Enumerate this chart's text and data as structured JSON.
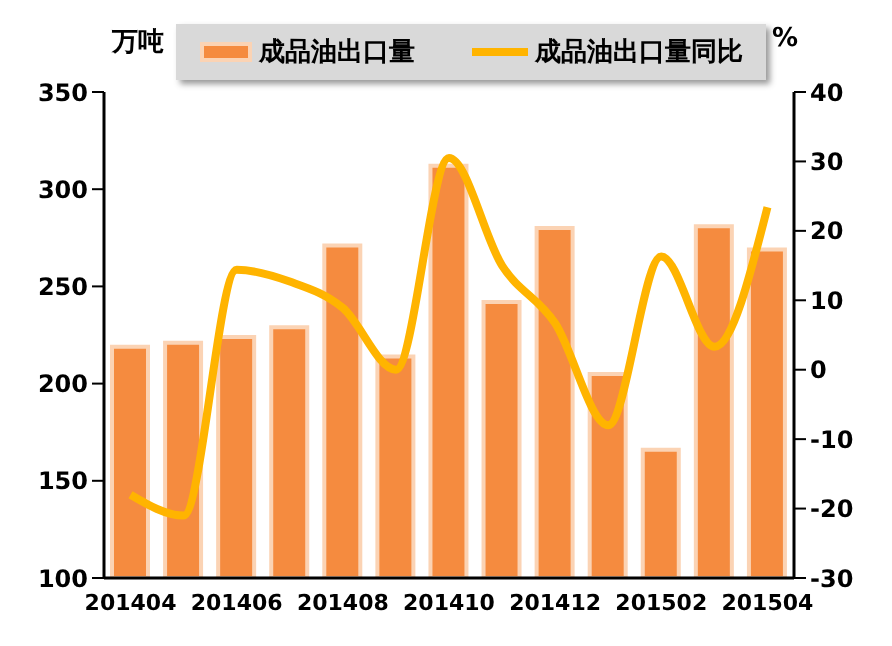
{
  "chart_data": {
    "type": "bar",
    "categories": [
      "201404",
      null,
      "201406",
      null,
      "201408",
      null,
      "201410",
      null,
      "201412",
      null,
      "201502",
      null,
      "201504"
    ],
    "ylabel": "万吨",
    "y2label": "%",
    "ylim": [
      100,
      350
    ],
    "yticks": [
      100,
      150,
      200,
      250,
      300,
      350
    ],
    "y2lim": [
      -30,
      40
    ],
    "y2ticks": [
      -30,
      -20,
      -10,
      0,
      10,
      20,
      30,
      40
    ],
    "series": [
      {
        "name": "成品油出口量",
        "color": "#f58b3f",
        "values": [
          219,
          221,
          224,
          229,
          271,
          214,
          312,
          242,
          280,
          205,
          166,
          281,
          269
        ]
      },
      {
        "name": "成品油出口量同比",
        "type": "line",
        "axis": "y2",
        "color": "#ffb400",
        "values": [
          -18,
          -21,
          14.4,
          12.7,
          8.9,
          0,
          30.5,
          15,
          6.7,
          -8,
          16.3,
          3.3,
          23.4
        ]
      }
    ],
    "legend": "top",
    "marker": "none",
    "line_style": "solid"
  }
}
